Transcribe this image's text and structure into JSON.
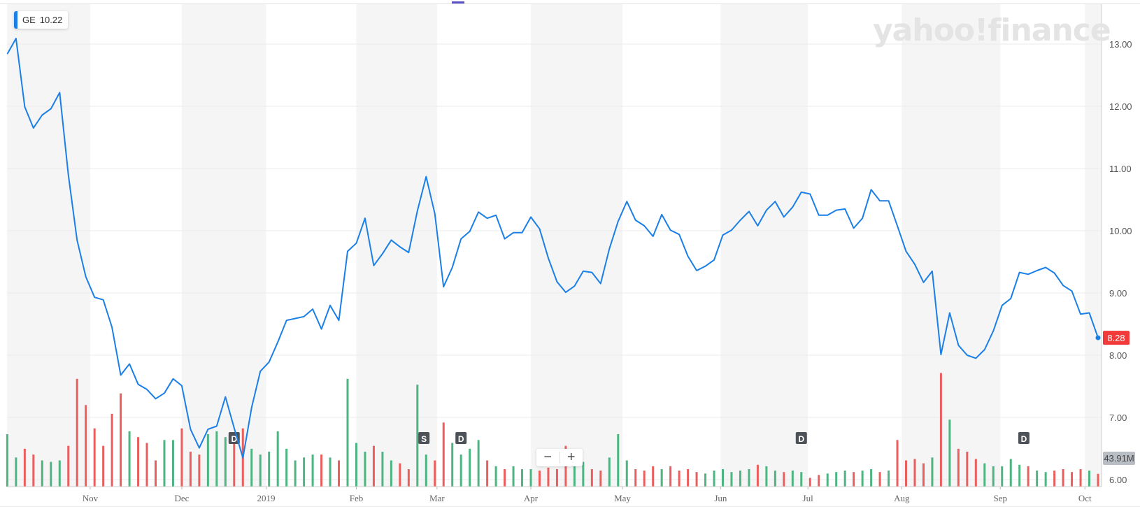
{
  "legend": {
    "symbol": "GE",
    "value": "10.22",
    "color": "#1a7fe6"
  },
  "watermark": "yahoo!finance",
  "zoom_controls": {
    "minus": "−",
    "plus": "+"
  },
  "colors": {
    "line": "#1a7fe6",
    "up": "#4cb582",
    "down": "#ec5e5e",
    "band": "#f5f5f5",
    "grid": "#ebebeb",
    "price_label": "#f33a3a",
    "volume_label": "#b9bdc4",
    "event": "#4d5259"
  },
  "chart_data": {
    "type": "line",
    "title": "",
    "xlabel": "",
    "ylabel": "",
    "ylim": [
      6,
      13.6
    ],
    "y_ticks": [
      "13.00",
      "12.00",
      "11.00",
      "10.00",
      "9.00",
      "8.00",
      "7.00",
      "6.00"
    ],
    "y_tick_values": [
      13,
      12,
      11,
      10,
      9,
      8,
      7,
      6
    ],
    "grid": true,
    "legend_position": "top-left",
    "x_ticks": [
      {
        "label": "Nov",
        "date": "2018-11-01"
      },
      {
        "label": "Dec",
        "date": "2018-12-03"
      },
      {
        "label": "2019",
        "date": "2019-01-02"
      },
      {
        "label": "Feb",
        "date": "2019-02-01"
      },
      {
        "label": "Mar",
        "date": "2019-03-01"
      },
      {
        "label": "Apr",
        "date": "2019-04-01"
      },
      {
        "label": "May",
        "date": "2019-05-01"
      },
      {
        "label": "Jun",
        "date": "2019-06-03"
      },
      {
        "label": "Jul",
        "date": "2019-07-01"
      },
      {
        "label": "Aug",
        "date": "2019-08-01"
      },
      {
        "label": "Sep",
        "date": "2019-09-03"
      },
      {
        "label": "Oct",
        "date": "2019-10-01"
      }
    ],
    "last_price": "8.28",
    "last_volume": "43.91M",
    "events": [
      {
        "label": "D",
        "date": "2018-12-20"
      },
      {
        "label": "S",
        "date": "2019-02-25"
      },
      {
        "label": "D",
        "date": "2019-03-08"
      },
      {
        "label": "D",
        "date": "2019-06-28"
      },
      {
        "label": "D",
        "date": "2019-09-11"
      }
    ],
    "series": [
      {
        "dates": [
          "2018-10-05",
          "2018-10-09",
          "2018-10-11",
          "2018-10-15",
          "2018-10-17",
          "2018-10-19",
          "2018-10-23",
          "2018-10-25",
          "2018-10-29",
          "2018-10-31",
          "2018-11-02",
          "2018-11-06",
          "2018-11-08",
          "2018-11-12",
          "2018-11-14",
          "2018-11-16",
          "2018-11-20",
          "2018-11-23",
          "2018-11-27",
          "2018-11-29",
          "2018-12-03",
          "2018-12-06",
          "2018-12-10",
          "2018-12-12",
          "2018-12-14",
          "2018-12-18",
          "2018-12-20",
          "2018-12-24",
          "2018-12-27",
          "2018-12-31",
          "2019-01-03",
          "2019-01-07",
          "2019-01-09",
          "2019-01-11",
          "2019-01-15",
          "2019-01-17",
          "2019-01-22",
          "2019-01-24",
          "2019-01-28",
          "2019-01-30",
          "2019-02-01",
          "2019-02-05",
          "2019-02-07",
          "2019-02-11",
          "2019-02-13",
          "2019-02-15",
          "2019-02-20",
          "2019-02-22",
          "2019-02-26",
          "2019-02-28",
          "2019-03-04",
          "2019-03-06",
          "2019-03-08",
          "2019-03-12",
          "2019-03-14",
          "2019-03-18",
          "2019-03-20",
          "2019-03-22",
          "2019-03-26",
          "2019-03-28",
          "2019-04-01",
          "2019-04-03",
          "2019-04-05",
          "2019-04-09",
          "2019-04-11",
          "2019-04-15",
          "2019-04-17",
          "2019-04-22",
          "2019-04-24",
          "2019-04-26",
          "2019-04-30",
          "2019-05-02",
          "2019-05-06",
          "2019-05-08",
          "2019-05-10",
          "2019-05-14",
          "2019-05-16",
          "2019-05-20",
          "2019-05-22",
          "2019-05-24",
          "2019-05-29",
          "2019-05-31",
          "2019-06-04",
          "2019-06-06",
          "2019-06-10",
          "2019-06-12",
          "2019-06-14",
          "2019-06-18",
          "2019-06-20",
          "2019-06-24",
          "2019-06-26",
          "2019-06-28",
          "2019-07-02",
          "2019-07-05",
          "2019-07-09",
          "2019-07-11",
          "2019-07-15",
          "2019-07-17",
          "2019-07-19",
          "2019-07-23",
          "2019-07-25",
          "2019-07-29",
          "2019-07-31",
          "2019-08-02",
          "2019-08-06",
          "2019-08-08",
          "2019-08-12",
          "2019-08-14",
          "2019-08-16",
          "2019-08-20",
          "2019-08-22",
          "2019-08-26",
          "2019-08-28",
          "2019-08-30",
          "2019-09-04",
          "2019-09-06",
          "2019-09-10",
          "2019-09-12",
          "2019-09-16",
          "2019-09-18",
          "2019-09-20",
          "2019-09-24",
          "2019-09-26",
          "2019-09-30",
          "2019-10-02",
          "2019-10-04"
        ],
        "close": [
          12.84,
          13.09,
          11.99,
          11.65,
          11.86,
          11.96,
          12.22,
          10.9,
          9.85,
          9.26,
          8.93,
          8.89,
          8.45,
          7.68,
          7.86,
          7.53,
          7.45,
          7.3,
          7.39,
          7.62,
          7.51,
          6.81,
          6.51,
          6.81,
          6.86,
          7.33,
          6.83,
          6.35,
          7.16,
          7.74,
          7.89,
          8.21,
          8.56,
          8.59,
          8.62,
          8.74,
          8.42,
          8.8,
          8.56,
          9.67,
          9.8,
          10.2,
          9.44,
          9.63,
          9.85,
          9.74,
          9.65,
          10.32,
          10.87,
          10.27,
          9.1,
          9.41,
          9.87,
          9.99,
          10.3,
          10.2,
          10.25,
          9.87,
          9.97,
          9.97,
          10.22,
          10.03,
          9.56,
          9.18,
          9.01,
          9.11,
          9.35,
          9.33,
          9.15,
          9.71,
          10.15,
          10.47,
          10.17,
          10.08,
          9.91,
          10.26,
          10.01,
          9.94,
          9.59,
          9.36,
          9.43,
          9.53,
          9.93,
          10.01,
          10.17,
          10.31,
          10.08,
          10.33,
          10.47,
          10.22,
          10.38,
          10.62,
          10.59,
          10.25,
          10.25,
          10.33,
          10.35,
          10.04,
          10.2,
          10.66,
          10.48,
          10.48,
          10.08,
          9.67,
          9.46,
          9.17,
          9.35,
          8.01,
          8.68,
          8.16,
          8.0,
          7.95,
          8.09,
          8.39,
          8.8,
          8.91,
          9.33,
          9.3,
          9.36,
          9.41,
          9.32,
          9.12,
          9.03,
          8.66,
          8.68,
          8.28
        ],
        "volume_millions": [
          180,
          100,
          130,
          110,
          90,
          85,
          90,
          140,
          370,
          280,
          200,
          140,
          250,
          320,
          190,
          170,
          150,
          90,
          160,
          160,
          200,
          120,
          110,
          180,
          190,
          170,
          150,
          200,
          130,
          110,
          120,
          190,
          130,
          90,
          100,
          110,
          110,
          100,
          90,
          370,
          150,
          120,
          140,
          120,
          90,
          80,
          60,
          350,
          110,
          90,
          220,
          150,
          110,
          130,
          160,
          90,
          70,
          60,
          70,
          60,
          60,
          55,
          65,
          60,
          140,
          75,
          85,
          60,
          55,
          100,
          180,
          90,
          60,
          55,
          70,
          60,
          70,
          55,
          60,
          50,
          45,
          55,
          60,
          50,
          55,
          60,
          75,
          70,
          55,
          50,
          55,
          50,
          30,
          40,
          45,
          50,
          55,
          50,
          55,
          60,
          50,
          55,
          160,
          90,
          95,
          80,
          100,
          390,
          230,
          130,
          120,
          95,
          80,
          70,
          70,
          95,
          75,
          70,
          55,
          50,
          55,
          60,
          50,
          60,
          55,
          43.91
        ]
      }
    ]
  }
}
